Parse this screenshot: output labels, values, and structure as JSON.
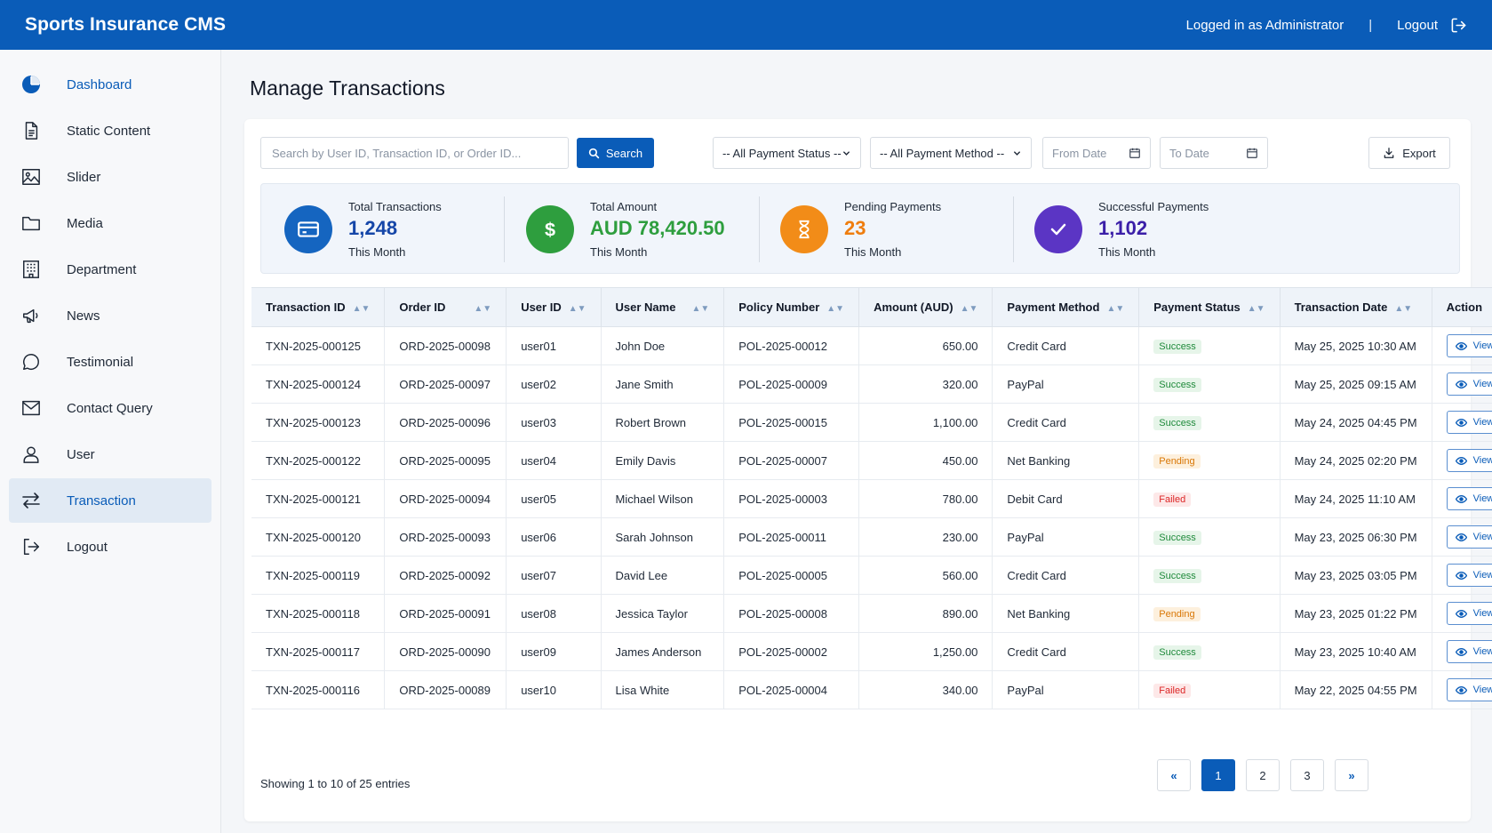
{
  "header": {
    "title": "Sports Insurance CMS",
    "logged_in": "Logged in as Administrator",
    "separator": "|",
    "logout": "Logout"
  },
  "sidebar": {
    "items": [
      {
        "label": "Dashboard",
        "icon": "pie-chart-icon"
      },
      {
        "label": "Static Content",
        "icon": "document-icon"
      },
      {
        "label": "Slider",
        "icon": "image-icon"
      },
      {
        "label": "Media",
        "icon": "folder-icon"
      },
      {
        "label": "Department",
        "icon": "building-icon"
      },
      {
        "label": "News",
        "icon": "megaphone-icon"
      },
      {
        "label": "Testimonial",
        "icon": "chat-bubble-icon"
      },
      {
        "label": "Contact Query",
        "icon": "envelope-icon"
      },
      {
        "label": "User",
        "icon": "user-icon"
      },
      {
        "label": "Transaction",
        "icon": "transfer-arrows-icon",
        "active": true
      },
      {
        "label": "Logout",
        "icon": "logout-icon"
      }
    ]
  },
  "page": {
    "title": "Manage Transactions"
  },
  "filters": {
    "search_placeholder": "Search by User ID, Transaction ID, or Order ID...",
    "search_button": "Search",
    "payment_status": "-- All Payment Status --",
    "payment_method": "-- All Payment Method --",
    "from_date": "From Date",
    "to_date": "To Date",
    "export": "Export"
  },
  "stats": [
    {
      "title": "Total Transactions",
      "value": "1,248",
      "sub": "This Month",
      "color": "#1565c0",
      "icon": "credit-card-icon"
    },
    {
      "title": "Total Amount",
      "value": "AUD 78,420.50",
      "sub": "This Month",
      "color": "#2e9e3e",
      "icon": "dollar-icon"
    },
    {
      "title": "Pending Payments",
      "value": "23",
      "sub": "This Month",
      "color": "#f28c18",
      "icon": "hourglass-icon"
    },
    {
      "title": "Successful Payments",
      "value": "1,102",
      "sub": "This Month",
      "color": "#5b35c4",
      "icon": "check-icon"
    }
  ],
  "table": {
    "columns": [
      "Transaction ID",
      "Order ID",
      "User ID",
      "User Name",
      "Policy Number",
      "Amount (AUD)",
      "Payment Method",
      "Payment Status",
      "Transaction Date",
      "Action"
    ],
    "action_label": "View Details",
    "rows": [
      [
        "TXN-2025-000125",
        "ORD-2025-00098",
        "user01",
        "John Doe",
        "POL-2025-00012",
        "650.00",
        "Credit Card",
        "Success",
        "May 25, 2025 10:30 AM"
      ],
      [
        "TXN-2025-000124",
        "ORD-2025-00097",
        "user02",
        "Jane Smith",
        "POL-2025-00009",
        "320.00",
        "PayPal",
        "Success",
        "May 25, 2025 09:15 AM"
      ],
      [
        "TXN-2025-000123",
        "ORD-2025-00096",
        "user03",
        "Robert Brown",
        "POL-2025-00015",
        "1,100.00",
        "Credit Card",
        "Success",
        "May 24, 2025 04:45 PM"
      ],
      [
        "TXN-2025-000122",
        "ORD-2025-00095",
        "user04",
        "Emily Davis",
        "POL-2025-00007",
        "450.00",
        "Net Banking",
        "Pending",
        "May 24, 2025 02:20 PM"
      ],
      [
        "TXN-2025-000121",
        "ORD-2025-00094",
        "user05",
        "Michael Wilson",
        "POL-2025-00003",
        "780.00",
        "Debit Card",
        "Failed",
        "May 24, 2025 11:10 AM"
      ],
      [
        "TXN-2025-000120",
        "ORD-2025-00093",
        "user06",
        "Sarah Johnson",
        "POL-2025-00011",
        "230.00",
        "PayPal",
        "Success",
        "May 23, 2025 06:30 PM"
      ],
      [
        "TXN-2025-000119",
        "ORD-2025-00092",
        "user07",
        "David Lee",
        "POL-2025-00005",
        "560.00",
        "Credit Card",
        "Success",
        "May 23, 2025 03:05 PM"
      ],
      [
        "TXN-2025-000118",
        "ORD-2025-00091",
        "user08",
        "Jessica Taylor",
        "POL-2025-00008",
        "890.00",
        "Net Banking",
        "Pending",
        "May 23, 2025 01:22 PM"
      ],
      [
        "TXN-2025-000117",
        "ORD-2025-00090",
        "user09",
        "James Anderson",
        "POL-2025-00002",
        "1,250.00",
        "Credit Card",
        "Success",
        "May 23, 2025 10:40 AM"
      ],
      [
        "TXN-2025-000116",
        "ORD-2025-00089",
        "user10",
        "Lisa White",
        "POL-2025-00004",
        "340.00",
        "PayPal",
        "Failed",
        "May 22, 2025 04:55 PM"
      ]
    ]
  },
  "footer": {
    "showing": "Showing 1 to 10 of 25 entries",
    "pages": [
      "«",
      "1",
      "2",
      "3",
      "»"
    ],
    "current_page": "1"
  }
}
